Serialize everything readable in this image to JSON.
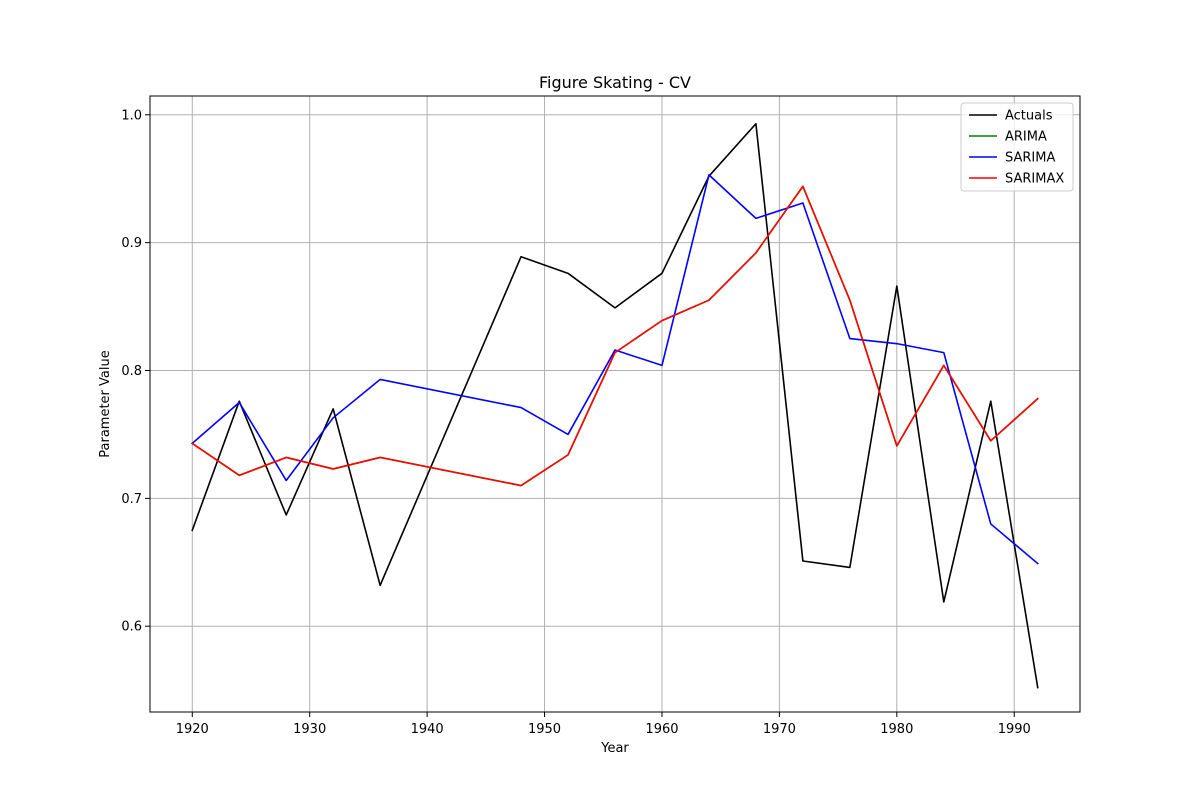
{
  "chart_data": {
    "type": "line",
    "title": "Figure Skating - CV",
    "xlabel": "Year",
    "ylabel": "Parameter Value",
    "xlim": [
      1916.4,
      1995.6
    ],
    "ylim": [
      0.5329,
      1.0147
    ],
    "xticks": [
      1920,
      1930,
      1940,
      1950,
      1960,
      1970,
      1980,
      1990
    ],
    "yticks": [
      0.6,
      0.7,
      0.8,
      0.9,
      1.0
    ],
    "ytick_labels": [
      "0.6",
      "0.7",
      "0.8",
      "0.9",
      "1.0"
    ],
    "grid": true,
    "legend_position": "top-right",
    "x": [
      1920,
      1924,
      1928,
      1932,
      1936,
      1948,
      1952,
      1956,
      1960,
      1964,
      1968,
      1972,
      1976,
      1980,
      1984,
      1988,
      1992
    ],
    "series": [
      {
        "name": "Actuals",
        "color": "#000000",
        "values": [
          0.675,
          0.776,
          0.687,
          0.77,
          0.632,
          0.889,
          0.876,
          0.849,
          0.876,
          0.952,
          0.993,
          0.651,
          0.646,
          0.866,
          0.619,
          0.776,
          0.552
        ]
      },
      {
        "name": "ARIMA",
        "color": "#008000",
        "values": [
          0.743,
          0.718,
          0.732,
          0.723,
          0.732,
          0.71,
          0.734,
          0.814,
          0.839,
          0.855,
          0.892,
          0.944,
          0.855,
          0.741,
          0.804,
          0.745,
          0.778
        ]
      },
      {
        "name": "SARIMA",
        "color": "#0000ff",
        "values": [
          0.743,
          0.775,
          0.714,
          0.763,
          0.793,
          0.771,
          0.75,
          0.816,
          0.804,
          0.953,
          0.919,
          0.931,
          0.825,
          0.821,
          0.814,
          0.68,
          0.649
        ]
      },
      {
        "name": "SARIMAX",
        "color": "#ff0000",
        "values": [
          0.743,
          0.718,
          0.732,
          0.723,
          0.732,
          0.71,
          0.734,
          0.814,
          0.839,
          0.855,
          0.892,
          0.944,
          0.855,
          0.741,
          0.804,
          0.745,
          0.778
        ]
      }
    ]
  }
}
